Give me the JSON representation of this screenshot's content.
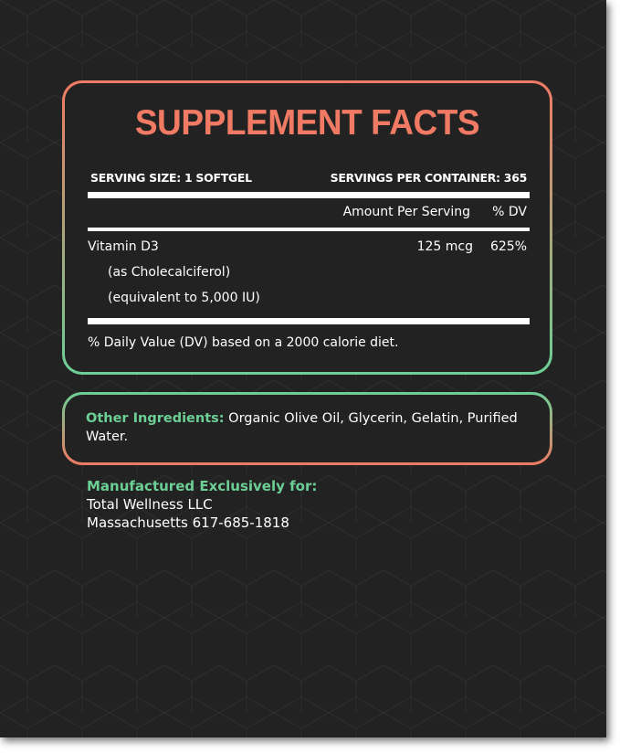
{
  "colors": {
    "background": "#222222",
    "accent_coral": "#f07a63",
    "accent_green": "#6ccf95"
  },
  "facts": {
    "title": "SUPPLEMENT FACTS",
    "serving_size": "SERVING SIZE: 1 SOFTGEL",
    "servings_per_container": "SERVINGS PER CONTAINER: 365",
    "col_amount": "Amount Per Serving",
    "col_dv": "% DV",
    "rows": [
      {
        "name": "Vitamin D3",
        "sub": [
          "(as Cholecalciferol)",
          "(equivalent to 5,000 IU)"
        ],
        "amount": "125 mcg",
        "dv": "625%"
      }
    ],
    "footnote": "% Daily Value (DV) based on a 2000 calorie diet."
  },
  "other": {
    "label": "Other Ingredients:",
    "text": " Organic Olive Oil, Glycerin, Gelatin, Purified Water."
  },
  "manufacturer": {
    "label": "Manufactured Exclusively for:",
    "name": "Total Wellness LLC",
    "address": "Massachusetts 617-685-1818"
  }
}
